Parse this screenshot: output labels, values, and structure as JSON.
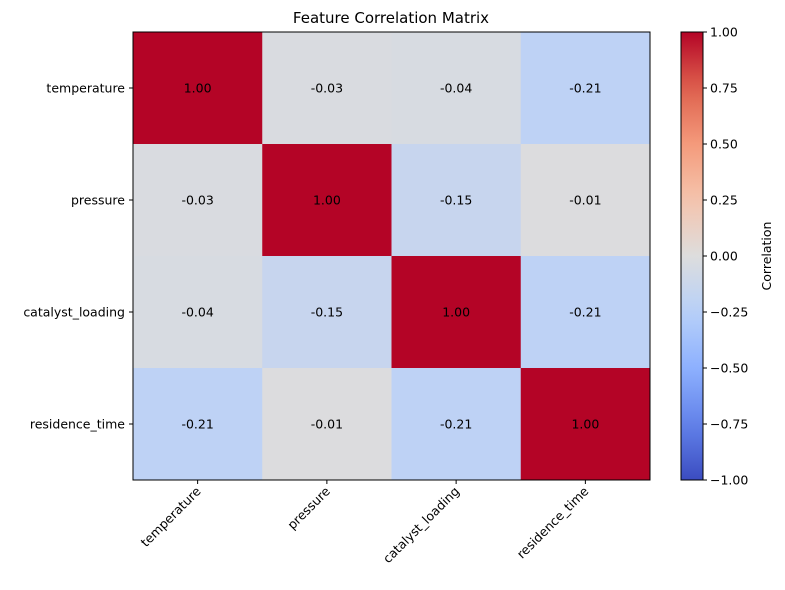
{
  "chart_data": {
    "type": "heatmap",
    "title": "Feature Correlation Matrix",
    "row_labels": [
      "temperature",
      "pressure",
      "catalyst_loading",
      "residence_time"
    ],
    "col_labels": [
      "temperature",
      "pressure",
      "catalyst_loading",
      "residence_time"
    ],
    "values": [
      [
        1.0,
        -0.03,
        -0.04,
        -0.21
      ],
      [
        -0.03,
        1.0,
        -0.15,
        -0.01
      ],
      [
        -0.04,
        -0.15,
        1.0,
        -0.21
      ],
      [
        -0.21,
        -0.01,
        -0.21,
        1.0
      ]
    ],
    "cell_labels": [
      [
        "1.00",
        "-0.03",
        "-0.04",
        "-0.21"
      ],
      [
        "-0.03",
        "1.00",
        "-0.15",
        "-0.01"
      ],
      [
        "-0.04",
        "-0.15",
        "1.00",
        "-0.21"
      ],
      [
        "-0.21",
        "-0.01",
        "-0.21",
        "1.00"
      ]
    ],
    "colormap": "coolwarm",
    "vmin": -1.0,
    "vmax": 1.0,
    "colorbar": {
      "label": "Correlation",
      "ticks": [
        1.0,
        0.75,
        0.5,
        0.25,
        0.0,
        -0.25,
        -0.5,
        -0.75,
        -1.0
      ],
      "tick_labels": [
        "1.00",
        "0.75",
        "0.50",
        "0.25",
        "0.00",
        "−0.25",
        "−0.50",
        "−0.75",
        "−1.00"
      ],
      "placement": "right"
    }
  }
}
